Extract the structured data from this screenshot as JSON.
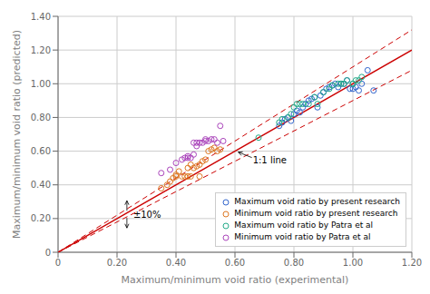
{
  "chart_data": {
    "type": "scatter",
    "xlabel": "Maximum/minimum void ratio (experimental)",
    "ylabel": "Maximum/minimum void ratio (predicted)",
    "xlim": [
      0,
      1.2
    ],
    "ylim": [
      0,
      1.4
    ],
    "xticks": [
      0,
      {
        "value": 0.2,
        "label": "0.20"
      },
      {
        "value": 0.4,
        "label": "0.40"
      },
      {
        "value": 0.6,
        "label": "0.60"
      },
      {
        "value": 0.8,
        "label": "0.80"
      },
      {
        "value": 1.0,
        "label": "1.00"
      },
      {
        "value": 1.2,
        "label": "1.20"
      }
    ],
    "yticks": [
      0,
      {
        "value": 0.2,
        "label": "0.20"
      },
      {
        "value": 0.4,
        "label": "0.40"
      },
      {
        "value": 0.6,
        "label": "0.60"
      },
      {
        "value": 0.8,
        "label": "0.80"
      },
      {
        "value": 1.0,
        "label": "1.00"
      },
      {
        "value": 1.2,
        "label": "1.20"
      },
      {
        "value": 1.4,
        "label": "1.40"
      }
    ],
    "grid": true,
    "legend": "lower right",
    "series": [
      {
        "type": "line",
        "color": "#cc0000",
        "line_style": "solid",
        "x": [
          0,
          1.2
        ],
        "values": [
          0,
          1.2
        ]
      },
      {
        "type": "line",
        "color": "#cc0000",
        "line_style": "dashed",
        "x": [
          0,
          1.2
        ],
        "values": [
          0,
          1.32
        ]
      },
      {
        "type": "line",
        "color": "#cc0000",
        "line_style": "dashed",
        "x": [
          0,
          1.2
        ],
        "values": [
          0,
          1.08
        ]
      },
      {
        "type": "scatter",
        "name": "Maximum void ratio by present research",
        "color": "#3366cc",
        "marker": "circle",
        "x": [
          0.75,
          0.76,
          0.77,
          0.78,
          0.79,
          0.8,
          0.81,
          0.82,
          0.83,
          0.84,
          0.85,
          0.86,
          0.87,
          0.88,
          0.89,
          0.9,
          0.91,
          0.92,
          0.93,
          0.94,
          0.95,
          0.96,
          0.97,
          0.98,
          0.99,
          1.0,
          1.01,
          1.02,
          1.03,
          1.05,
          1.07
        ],
        "values": [
          0.75,
          0.77,
          0.79,
          0.8,
          0.78,
          0.82,
          0.84,
          0.83,
          0.86,
          0.88,
          0.9,
          0.91,
          0.92,
          0.86,
          0.93,
          0.95,
          0.97,
          0.98,
          0.99,
          1.0,
          0.98,
          1.0,
          1.0,
          1.02,
          0.97,
          0.97,
          0.98,
          0.96,
          1.0,
          1.08,
          0.96
        ]
      },
      {
        "type": "scatter",
        "name": "Minimum void ratio by present research",
        "color": "#dd7722",
        "marker": "circle",
        "x": [
          0.35,
          0.37,
          0.38,
          0.39,
          0.4,
          0.4,
          0.41,
          0.42,
          0.43,
          0.44,
          0.44,
          0.45,
          0.45,
          0.46,
          0.47,
          0.48,
          0.48,
          0.49,
          0.5,
          0.51,
          0.52,
          0.53,
          0.54,
          0.55
        ],
        "values": [
          0.38,
          0.4,
          0.42,
          0.44,
          0.45,
          0.46,
          0.48,
          0.45,
          0.45,
          0.5,
          0.45,
          0.45,
          0.52,
          0.5,
          0.51,
          0.52,
          0.45,
          0.54,
          0.55,
          0.6,
          0.61,
          0.62,
          0.6,
          0.61
        ]
      },
      {
        "type": "scatter",
        "name": "Maximum void ratio by Patra et al",
        "color": "#22aa88",
        "marker": "circle",
        "x": [
          0.68,
          0.75,
          0.76,
          0.78,
          0.79,
          0.8,
          0.81,
          0.82,
          0.83,
          0.85,
          0.87,
          0.88,
          0.9,
          0.92,
          0.93,
          0.95,
          0.96,
          0.97,
          0.98,
          1.0,
          1.0,
          1.01,
          1.02,
          1.03
        ],
        "values": [
          0.68,
          0.77,
          0.79,
          0.8,
          0.82,
          0.86,
          0.88,
          0.88,
          0.88,
          0.88,
          0.92,
          0.88,
          0.95,
          0.97,
          0.99,
          1.0,
          1.0,
          1.0,
          1.02,
          1.0,
          1.0,
          1.02,
          1.02,
          1.04
        ]
      },
      {
        "type": "scatter",
        "name": "Minimum void ratio by Patra et al",
        "color": "#aa44bb",
        "marker": "circle",
        "x": [
          0.35,
          0.38,
          0.4,
          0.42,
          0.43,
          0.44,
          0.44,
          0.45,
          0.46,
          0.46,
          0.47,
          0.47,
          0.48,
          0.49,
          0.5,
          0.5,
          0.51,
          0.52,
          0.53,
          0.54,
          0.55,
          0.56
        ],
        "values": [
          0.47,
          0.49,
          0.53,
          0.55,
          0.56,
          0.56,
          0.57,
          0.56,
          0.58,
          0.65,
          0.63,
          0.65,
          0.65,
          0.65,
          0.66,
          0.67,
          0.66,
          0.67,
          0.67,
          0.65,
          0.75,
          0.66
        ]
      }
    ],
    "annotations": [
      {
        "text": "1:1 line",
        "x": 0.605,
        "y": 0.605
      },
      {
        "text": "±10%",
        "x": 0.255,
        "y": 0.225
      }
    ]
  }
}
